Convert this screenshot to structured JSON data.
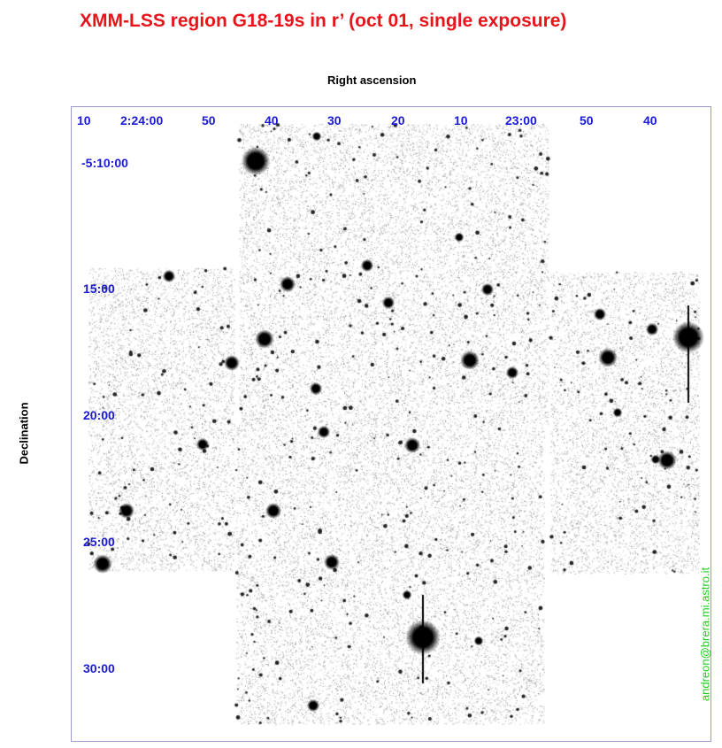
{
  "title": "XMM-LSS region G18-19s in r’ (oct 01, single exposure)",
  "x_axis_label": "Right ascension",
  "y_axis_label": "Declination",
  "ra_ticks": [
    "10",
    "2:24:00",
    "50",
    "40",
    "30",
    "20",
    "10",
    "23:00",
    "50",
    "40"
  ],
  "dec_ticks": [
    "-5:10:00",
    "15:00",
    "20:00",
    "25:00",
    "30:00"
  ],
  "credit": "andreon@brera.mi.astro.it",
  "colors": {
    "title": "#e8141a",
    "ticks": "#1a1ad8",
    "credit": "#22cc22",
    "frame": "#9a9ad0"
  }
}
